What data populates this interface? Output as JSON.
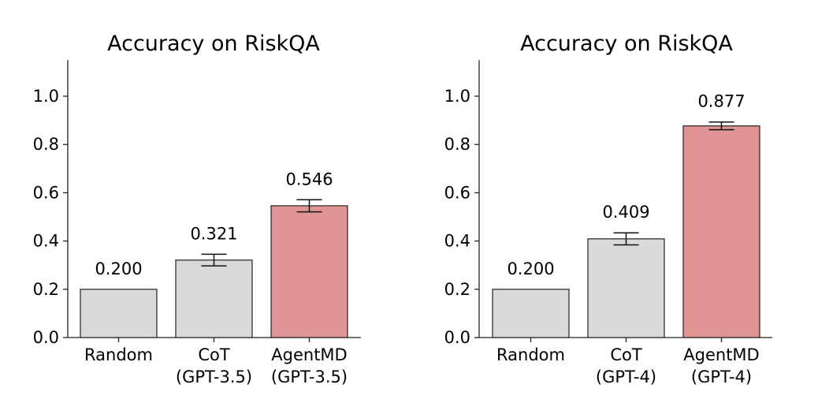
{
  "colors": {
    "baseline": "#d9d9d9",
    "highlight": "#e09494",
    "edge": "#222222"
  },
  "chart_data": [
    {
      "type": "bar",
      "title": "Accuracy on RiskQA",
      "xlabel": "",
      "ylabel": "",
      "ylim": [
        0,
        1.15
      ],
      "yticks": [
        "0.0",
        "0.2",
        "0.4",
        "0.6",
        "0.8",
        "1.0"
      ],
      "categories": [
        [
          "Random"
        ],
        [
          "CoT",
          "(GPT-3.5)"
        ],
        [
          "AgentMD",
          "(GPT-3.5)"
        ]
      ],
      "values": [
        0.2,
        0.321,
        0.546
      ],
      "value_labels": [
        "0.200",
        "0.321",
        "0.546"
      ],
      "errors": [
        null,
        0.024,
        0.025
      ],
      "bar_colors": [
        "baseline",
        "baseline",
        "highlight"
      ],
      "grid": false
    },
    {
      "type": "bar",
      "title": "Accuracy on RiskQA",
      "xlabel": "",
      "ylabel": "",
      "ylim": [
        0,
        1.15
      ],
      "yticks": [
        "0.0",
        "0.2",
        "0.4",
        "0.6",
        "0.8",
        "1.0"
      ],
      "categories": [
        [
          "Random"
        ],
        [
          "CoT",
          "(GPT-4)"
        ],
        [
          "AgentMD",
          "(GPT-4)"
        ]
      ],
      "values": [
        0.2,
        0.409,
        0.877
      ],
      "value_labels": [
        "0.200",
        "0.409",
        "0.877"
      ],
      "errors": [
        null,
        0.025,
        0.016
      ],
      "bar_colors": [
        "baseline",
        "baseline",
        "highlight"
      ],
      "grid": false
    }
  ]
}
